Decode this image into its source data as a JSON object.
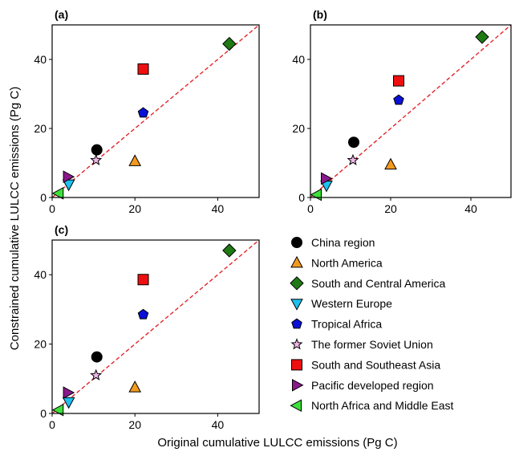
{
  "figure": {
    "xlabel": "Original cumulative LULCC emissions (Pg C)",
    "ylabel": "Constrained cumulative LULCC emissions (Pg C)"
  },
  "regions": [
    {
      "name": "China region",
      "marker": "circle",
      "color": "#000000"
    },
    {
      "name": "North America",
      "marker": "triangle-up",
      "color": "#f39a1e"
    },
    {
      "name": "South and Central America",
      "marker": "diamond",
      "color": "#1f7a14"
    },
    {
      "name": "Western Europe",
      "marker": "triangle-down",
      "color": "#1ec0ee"
    },
    {
      "name": "Tropical Africa",
      "marker": "pentagon",
      "color": "#0a10d6"
    },
    {
      "name": "The former Soviet Union",
      "marker": "star",
      "color": "#f2b6ea"
    },
    {
      "name": "South and Southeast Asia",
      "marker": "square",
      "color": "#ee1010"
    },
    {
      "name": "Pacific developed region",
      "marker": "triangle-right",
      "color": "#8a1a8c"
    },
    {
      "name": "North Africa and Middle East",
      "marker": "triangle-left",
      "color": "#3ee03a"
    }
  ],
  "chart_data": [
    {
      "type": "scatter",
      "panel_label": "(a)",
      "xlim": [
        0,
        50
      ],
      "ylim": [
        0,
        50
      ],
      "xticks": [
        0,
        20,
        40
      ],
      "yticks": [
        0,
        20,
        40
      ],
      "reference_line": {
        "style": "dashed",
        "color": "#e3262b",
        "from": [
          0,
          0
        ],
        "to": [
          50,
          50
        ]
      },
      "points": [
        {
          "region": "China region",
          "x": 10.8,
          "y": 13.8
        },
        {
          "region": "North America",
          "x": 20.0,
          "y": 10.5
        },
        {
          "region": "South and Central America",
          "x": 42.8,
          "y": 44.5
        },
        {
          "region": "Western Europe",
          "x": 4.0,
          "y": 3.8
        },
        {
          "region": "Tropical Africa",
          "x": 22.0,
          "y": 24.5
        },
        {
          "region": "The former Soviet Union",
          "x": 10.6,
          "y": 10.8
        },
        {
          "region": "South and Southeast Asia",
          "x": 22.0,
          "y": 37.2
        },
        {
          "region": "Pacific developed region",
          "x": 3.8,
          "y": 6.0
        },
        {
          "region": "North Africa and Middle East",
          "x": 1.6,
          "y": 1.2
        }
      ]
    },
    {
      "type": "scatter",
      "panel_label": "(b)",
      "xlim": [
        0,
        50
      ],
      "ylim": [
        0,
        50
      ],
      "xticks": [
        0,
        20,
        40
      ],
      "yticks": [
        0,
        20,
        40
      ],
      "reference_line": {
        "style": "dashed",
        "color": "#e3262b",
        "from": [
          0,
          0
        ],
        "to": [
          50,
          50
        ]
      },
      "points": [
        {
          "region": "China region",
          "x": 10.8,
          "y": 16.0
        },
        {
          "region": "North America",
          "x": 20.0,
          "y": 9.5
        },
        {
          "region": "South and Central America",
          "x": 42.8,
          "y": 46.5
        },
        {
          "region": "Western Europe",
          "x": 4.0,
          "y": 3.5
        },
        {
          "region": "Tropical Africa",
          "x": 22.0,
          "y": 28.2
        },
        {
          "region": "The former Soviet Union",
          "x": 10.6,
          "y": 10.8
        },
        {
          "region": "South and Southeast Asia",
          "x": 22.0,
          "y": 33.8
        },
        {
          "region": "Pacific developed region",
          "x": 3.8,
          "y": 5.5
        },
        {
          "region": "North Africa and Middle East",
          "x": 1.6,
          "y": 0.8
        }
      ]
    },
    {
      "type": "scatter",
      "panel_label": "(c)",
      "xlim": [
        0,
        50
      ],
      "ylim": [
        0,
        50
      ],
      "xticks": [
        0,
        20,
        40
      ],
      "yticks": [
        0,
        20,
        40
      ],
      "reference_line": {
        "style": "dashed",
        "color": "#e3262b",
        "from": [
          0,
          0
        ],
        "to": [
          50,
          50
        ]
      },
      "points": [
        {
          "region": "China region",
          "x": 10.8,
          "y": 16.3
        },
        {
          "region": "North America",
          "x": 20.0,
          "y": 7.5
        },
        {
          "region": "South and Central America",
          "x": 42.8,
          "y": 47.0
        },
        {
          "region": "Western Europe",
          "x": 4.0,
          "y": 3.3
        },
        {
          "region": "Tropical Africa",
          "x": 22.0,
          "y": 28.5
        },
        {
          "region": "The former Soviet Union",
          "x": 10.6,
          "y": 11.0
        },
        {
          "region": "South and Southeast Asia",
          "x": 22.0,
          "y": 38.6
        },
        {
          "region": "Pacific developed region",
          "x": 3.8,
          "y": 6.0
        },
        {
          "region": "North Africa and Middle East",
          "x": 1.6,
          "y": 1.0
        }
      ]
    }
  ]
}
